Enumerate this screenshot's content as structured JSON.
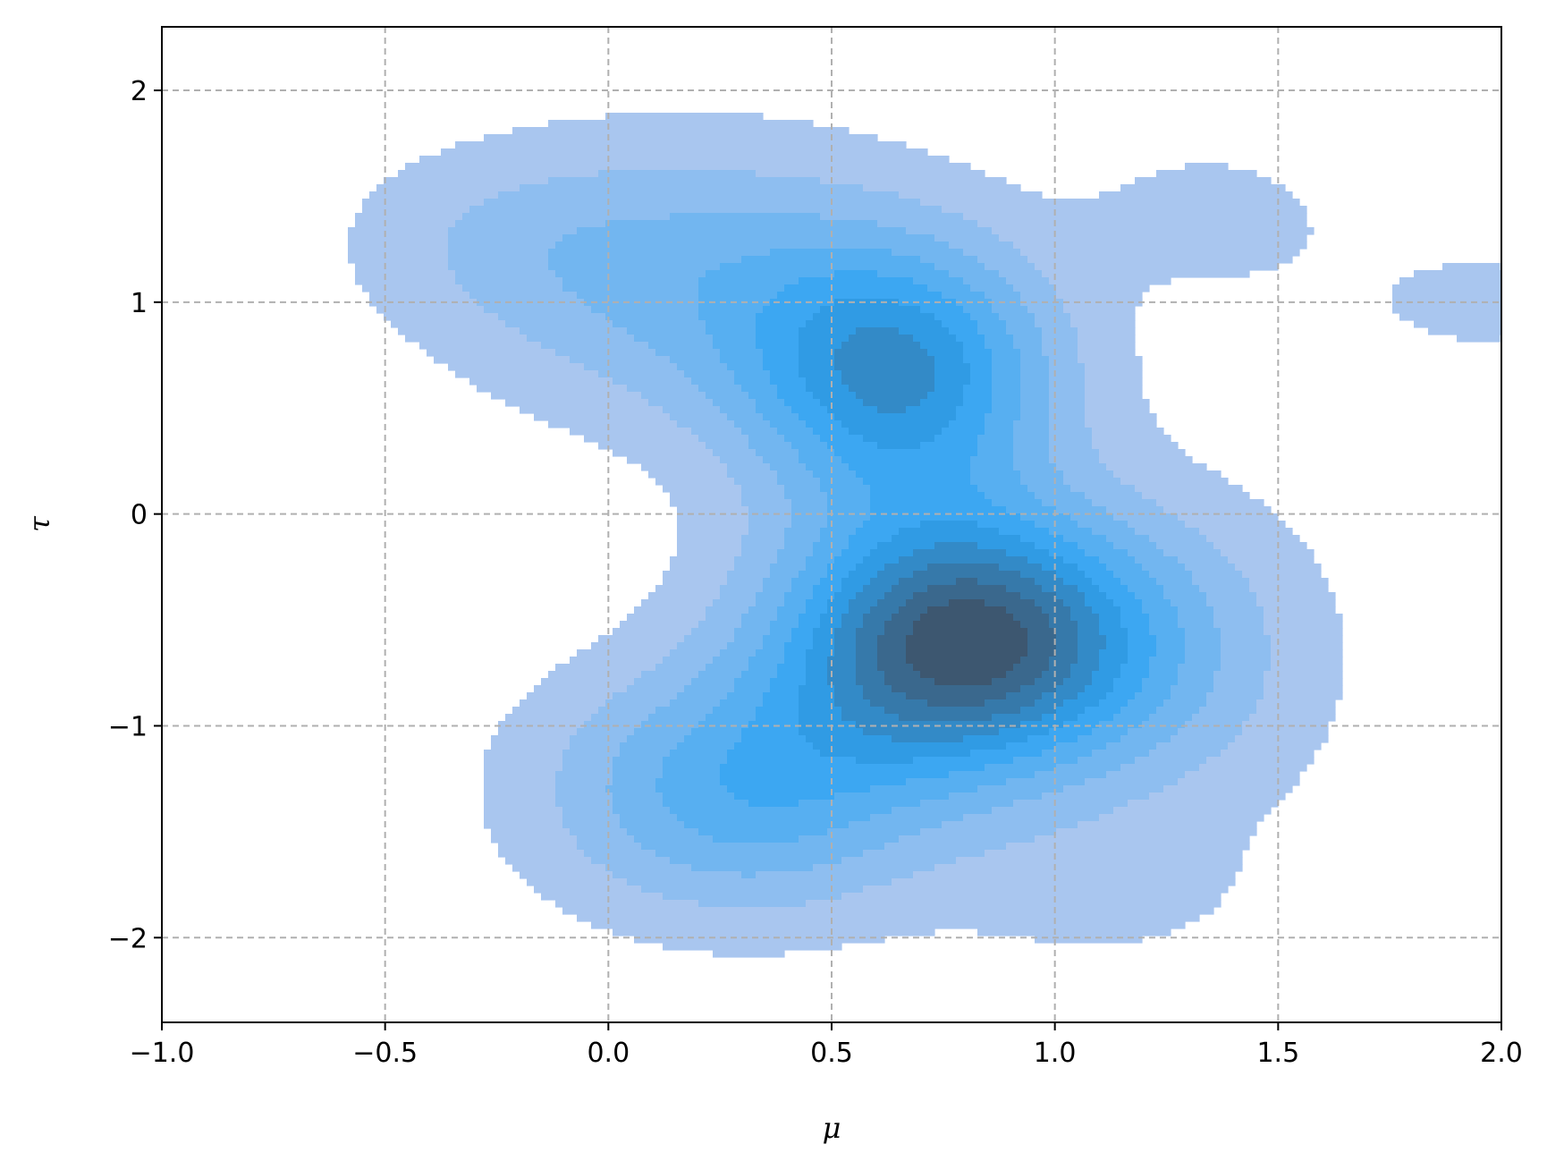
{
  "chart_data": {
    "type": "kde_contour",
    "title": "",
    "xlabel": "μ",
    "ylabel": "τ",
    "xlim": [
      -1.0,
      2.0
    ],
    "ylim": [
      -2.4,
      2.3
    ],
    "x_ticks": [
      -1.0,
      -0.5,
      0.0,
      0.5,
      1.0,
      1.5,
      2.0
    ],
    "x_tick_labels": [
      "−1.0",
      "−0.5",
      "0.0",
      "0.5",
      "1.0",
      "1.5",
      "2.0"
    ],
    "y_ticks": [
      -2,
      -1,
      0,
      1,
      2
    ],
    "y_tick_labels": [
      "−2",
      "−1",
      "0",
      "1",
      "2"
    ],
    "grid": true,
    "grid_style": "dashed",
    "density_modes": [
      {
        "mu": 0.8,
        "tau": -0.6,
        "sx": 0.28,
        "sy": 0.42,
        "weight": 1.0
      },
      {
        "mu": 0.65,
        "tau": 0.65,
        "sx": 0.24,
        "sy": 0.42,
        "weight": 0.62
      },
      {
        "mu": 0.2,
        "tau": 1.1,
        "sx": 0.35,
        "sy": 0.45,
        "weight": 0.28
      },
      {
        "mu": 0.3,
        "tau": -1.3,
        "sx": 0.3,
        "sy": 0.4,
        "weight": 0.42
      },
      {
        "mu": -0.25,
        "tau": 1.3,
        "sx": 0.25,
        "sy": 0.3,
        "weight": 0.1
      },
      {
        "mu": 1.35,
        "tau": 1.4,
        "sx": 0.2,
        "sy": 0.25,
        "weight": 0.1
      },
      {
        "mu": 1.95,
        "tau": 1.0,
        "sx": 0.25,
        "sy": 0.25,
        "weight": 0.08
      },
      {
        "mu": 1.3,
        "tau": -0.7,
        "sx": 0.25,
        "sy": 0.55,
        "weight": 0.14
      },
      {
        "mu": 1.1,
        "tau": -1.8,
        "sx": 0.25,
        "sy": 0.25,
        "weight": 0.08
      }
    ],
    "levels": 10,
    "colors": {
      "low": "#a9c6ef",
      "mid": "#2ea3f2",
      "high": "#3d5770",
      "grid": "#b0b0b0",
      "axes": "#000000"
    }
  }
}
